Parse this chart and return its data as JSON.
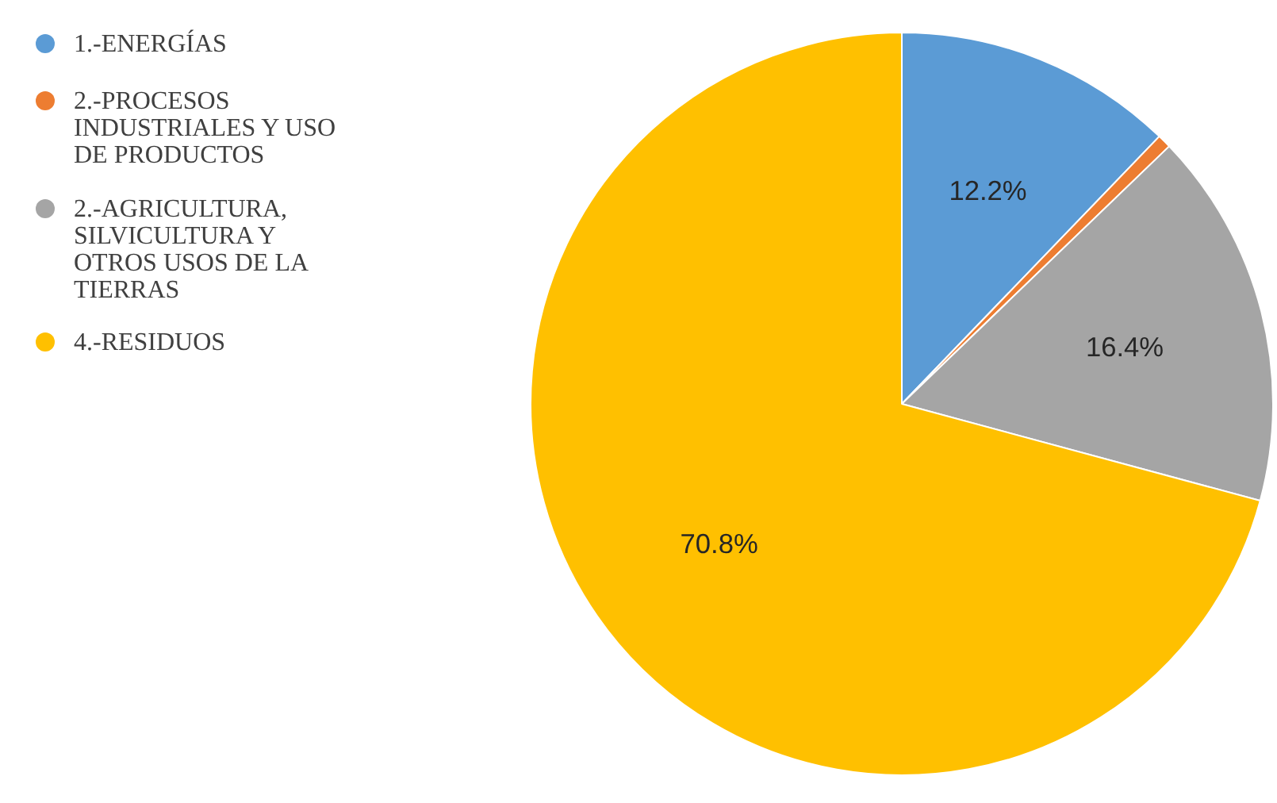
{
  "chart_data": {
    "type": "pie",
    "categories": [
      "1.-ENERGÍAS",
      "2.-PROCESOS\nINDUSTRIALES Y USO\nDE PRODUCTOS",
      "2.-AGRICULTURA,\nSILVICULTURA Y\nOTROS USOS DE LA\nTIERRAS",
      "4.-RESIDUOS"
    ],
    "values": [
      12.2,
      0.6,
      16.4,
      70.8
    ],
    "colors": [
      "#5b9bd5",
      "#ed7d31",
      "#a5a5a5",
      "#ffc000"
    ],
    "value_labels": [
      "12.2%",
      null,
      "16.4%",
      "70.8%"
    ],
    "legend": "left"
  }
}
